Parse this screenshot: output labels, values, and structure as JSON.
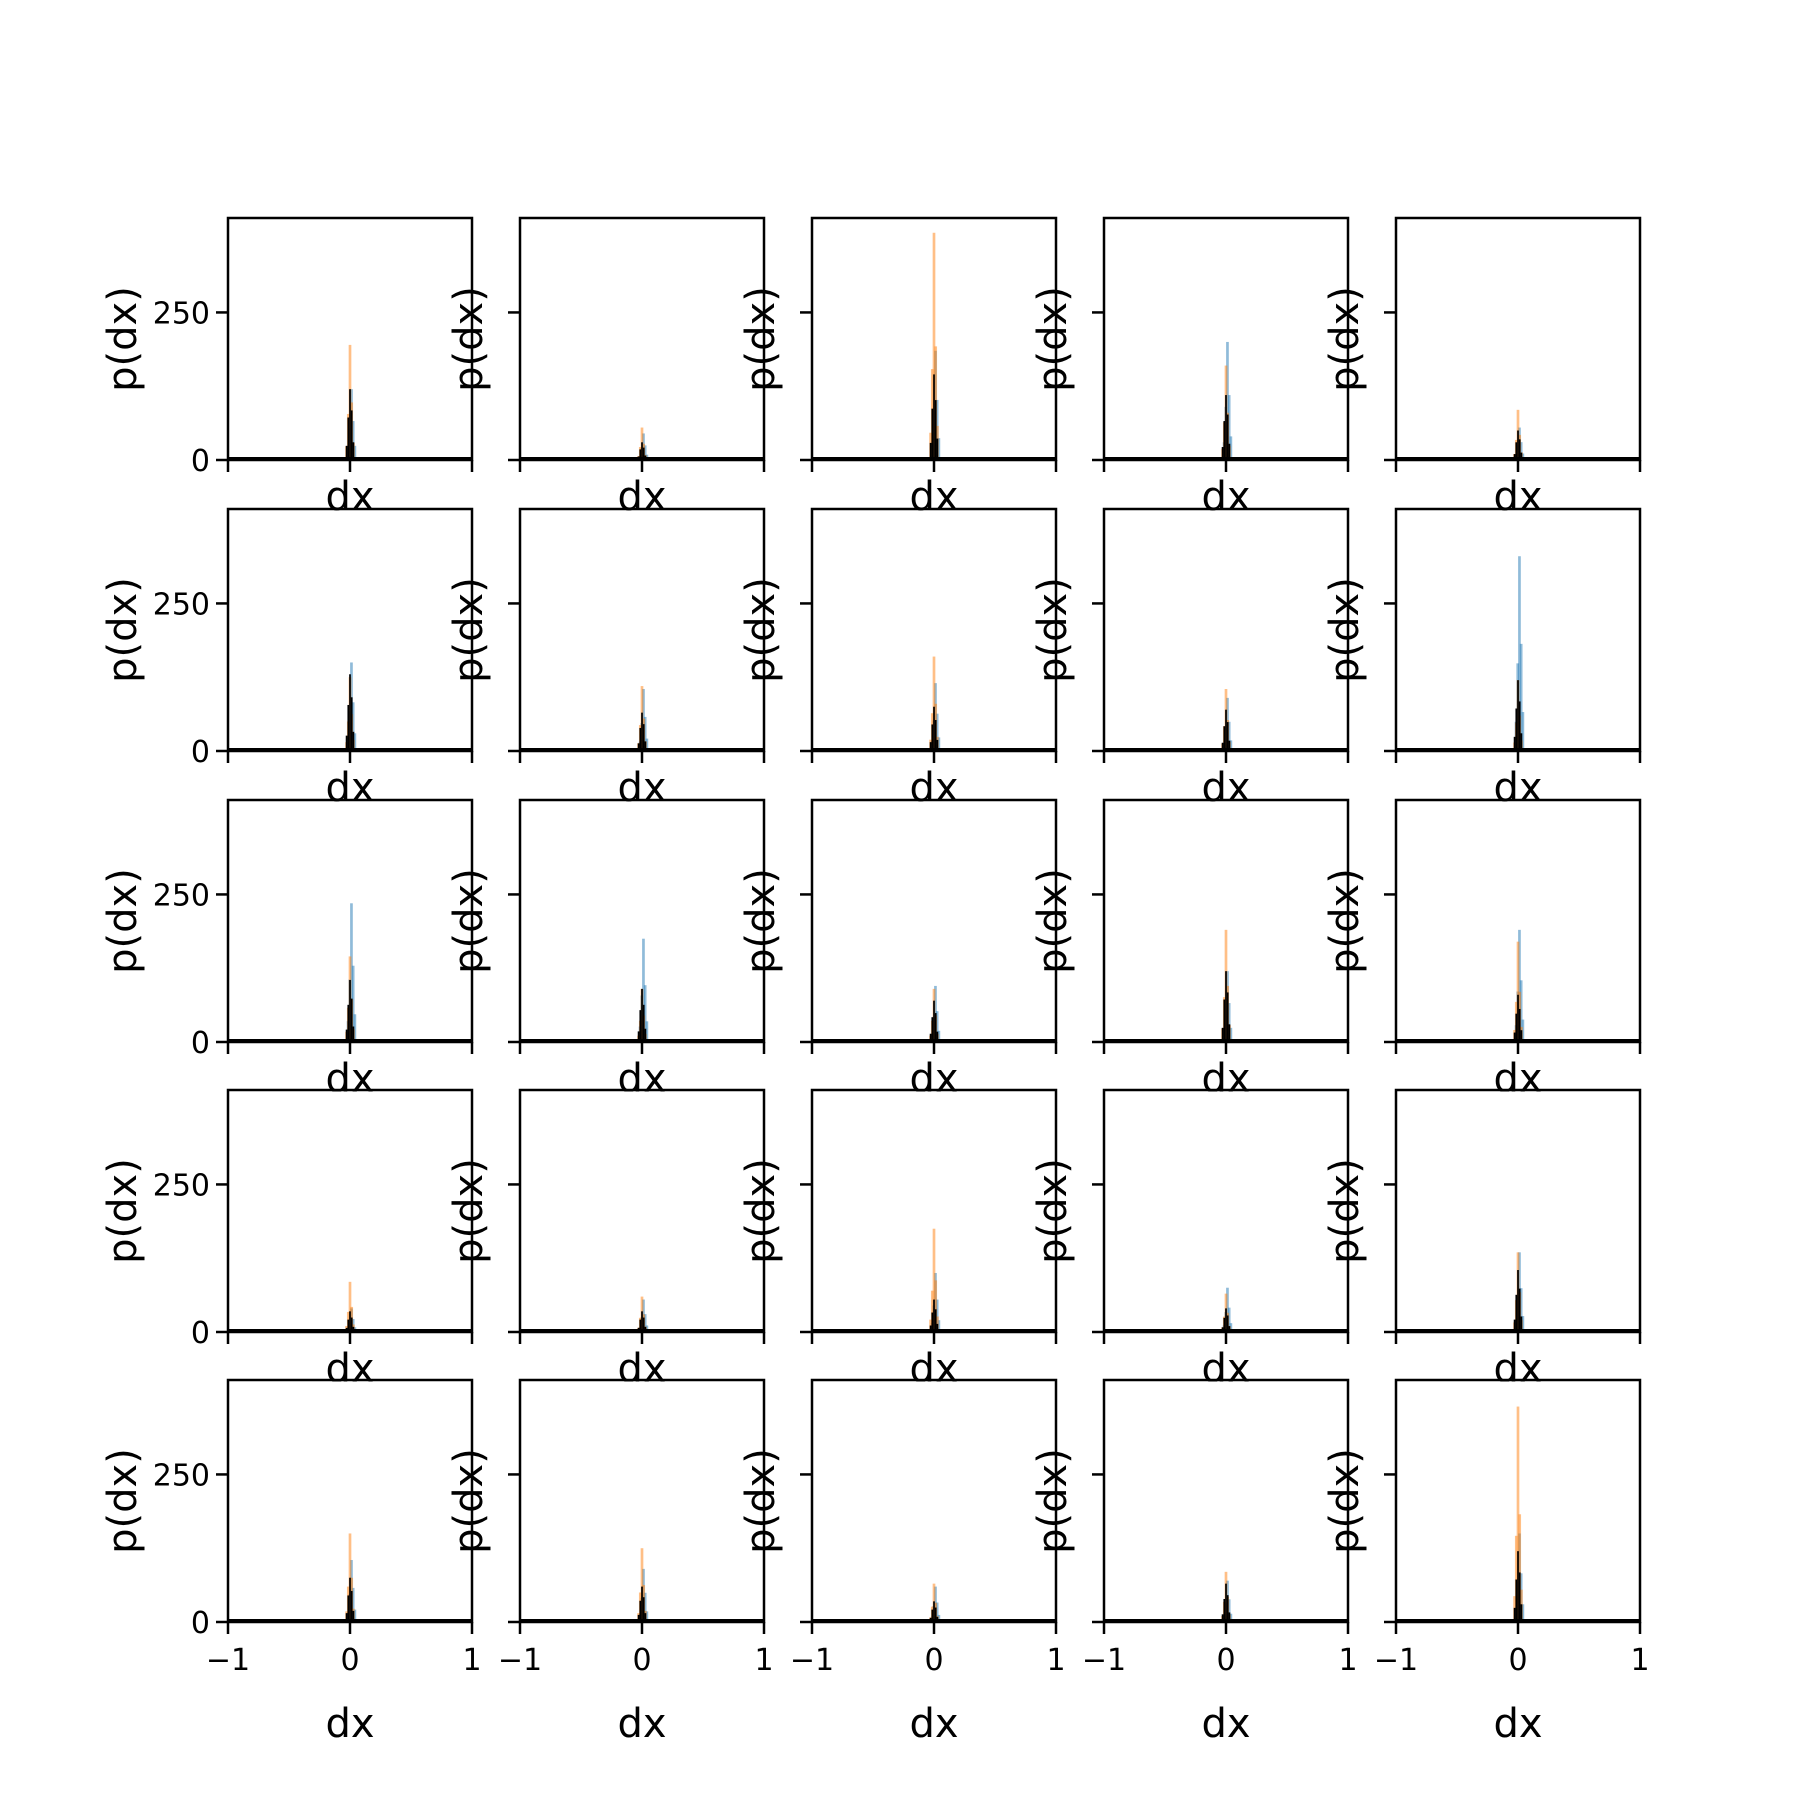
{
  "colors": {
    "series_blue": "#1f77b4",
    "series_orange": "#ff7f0e",
    "series_black": "#000000",
    "axes": "#000000",
    "background": "#ffffff"
  },
  "chart_data": {
    "type": "bar",
    "layout": "grid",
    "grid": {
      "rows": 5,
      "cols": 5
    },
    "xlabel": "dx",
    "ylabel": "p(dx)",
    "xlim": [
      -1,
      1
    ],
    "ylim": [
      0,
      410
    ],
    "xticks": [
      -1,
      0,
      1
    ],
    "xtick_labels": [
      "−1",
      "0",
      "1"
    ],
    "yticks": [
      0,
      250
    ],
    "ytick_labels": [
      "0",
      "250"
    ],
    "grid_lines": false,
    "legend": "none",
    "series_colors": [
      "#1f77b4",
      "#ff7f0e",
      "#000000"
    ],
    "panels": [
      {
        "row": 1,
        "col": 1,
        "peaks": [
          120,
          195,
          120
        ]
      },
      {
        "row": 1,
        "col": 2,
        "peaks": [
          45,
          55,
          30
        ]
      },
      {
        "row": 1,
        "col": 3,
        "peaks": [
          185,
          385,
          145
        ]
      },
      {
        "row": 1,
        "col": 4,
        "peaks": [
          200,
          160,
          110
        ]
      },
      {
        "row": 1,
        "col": 5,
        "peaks": [
          55,
          85,
          50
        ]
      },
      {
        "row": 2,
        "col": 1,
        "peaks": [
          150,
          125,
          130
        ]
      },
      {
        "row": 2,
        "col": 2,
        "peaks": [
          105,
          110,
          65
        ]
      },
      {
        "row": 2,
        "col": 3,
        "peaks": [
          115,
          160,
          75
        ]
      },
      {
        "row": 2,
        "col": 4,
        "peaks": [
          90,
          105,
          70
        ]
      },
      {
        "row": 2,
        "col": 5,
        "peaks": [
          330,
          120,
          120
        ]
      },
      {
        "row": 3,
        "col": 1,
        "peaks": [
          235,
          145,
          105
        ]
      },
      {
        "row": 3,
        "col": 2,
        "peaks": [
          175,
          90,
          90
        ]
      },
      {
        "row": 3,
        "col": 3,
        "peaks": [
          95,
          90,
          70
        ]
      },
      {
        "row": 3,
        "col": 4,
        "peaks": [
          120,
          190,
          120
        ]
      },
      {
        "row": 3,
        "col": 5,
        "peaks": [
          190,
          170,
          80
        ]
      },
      {
        "row": 4,
        "col": 1,
        "peaks": [
          40,
          85,
          35
        ]
      },
      {
        "row": 4,
        "col": 2,
        "peaks": [
          55,
          60,
          35
        ]
      },
      {
        "row": 4,
        "col": 3,
        "peaks": [
          100,
          175,
          55
        ]
      },
      {
        "row": 4,
        "col": 4,
        "peaks": [
          75,
          65,
          40
        ]
      },
      {
        "row": 4,
        "col": 5,
        "peaks": [
          135,
          135,
          105
        ]
      },
      {
        "row": 5,
        "col": 1,
        "peaks": [
          105,
          150,
          75
        ]
      },
      {
        "row": 5,
        "col": 2,
        "peaks": [
          90,
          125,
          60
        ]
      },
      {
        "row": 5,
        "col": 3,
        "peaks": [
          60,
          65,
          35
        ]
      },
      {
        "row": 5,
        "col": 4,
        "peaks": [
          70,
          85,
          65
        ]
      },
      {
        "row": 5,
        "col": 5,
        "peaks": [
          150,
          365,
          120
        ]
      }
    ]
  }
}
